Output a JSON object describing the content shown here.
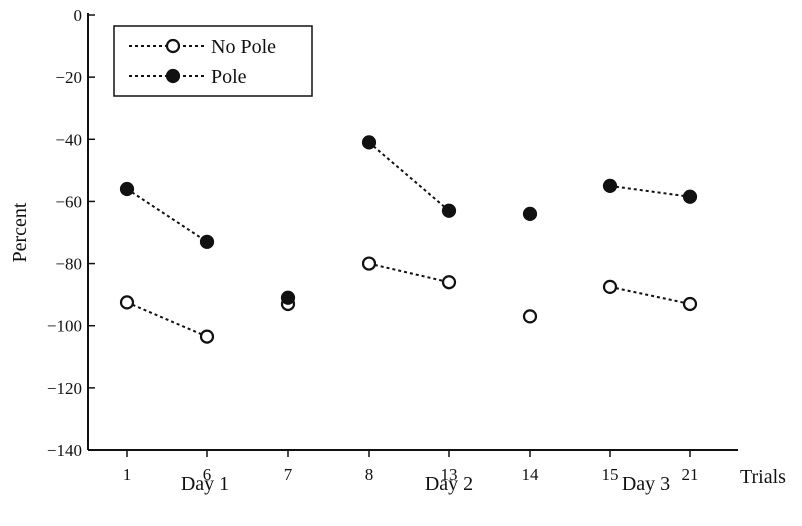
{
  "chart_data": {
    "type": "scatter",
    "ylabel": "Percent",
    "xlabel": "Trials",
    "ylim": [
      -140,
      0
    ],
    "yticks": [
      0,
      -20,
      -40,
      -60,
      -80,
      -100,
      -120,
      -140
    ],
    "ytick_labels": [
      "0",
      "−20",
      "−40",
      "−60",
      "−80",
      "−100",
      "−120",
      "−140"
    ],
    "categories": [
      "1",
      "6",
      "7",
      "8",
      "13",
      "14",
      "15",
      "21"
    ],
    "groups": [
      {
        "label": "Day 1"
      },
      {
        "label": "Day 2"
      },
      {
        "label": "Day 3"
      }
    ],
    "legend_position": "top-left",
    "grid": false,
    "series": [
      {
        "name": "No Pole",
        "marker": "open-circle",
        "values": [
          -92.5,
          -103.5,
          -93,
          -80,
          -86,
          -97,
          -87.5,
          -93
        ]
      },
      {
        "name": "Pole",
        "marker": "filled-circle",
        "values": [
          -56,
          -73,
          -91,
          -41,
          -63,
          -64,
          -55,
          -58.5
        ]
      }
    ],
    "connected_pairs": [
      [
        0,
        1
      ],
      [
        3,
        4
      ],
      [
        6,
        7
      ]
    ],
    "line_style": "dotted",
    "colors": {
      "ink": "#111111",
      "background": "#ffffff"
    }
  }
}
